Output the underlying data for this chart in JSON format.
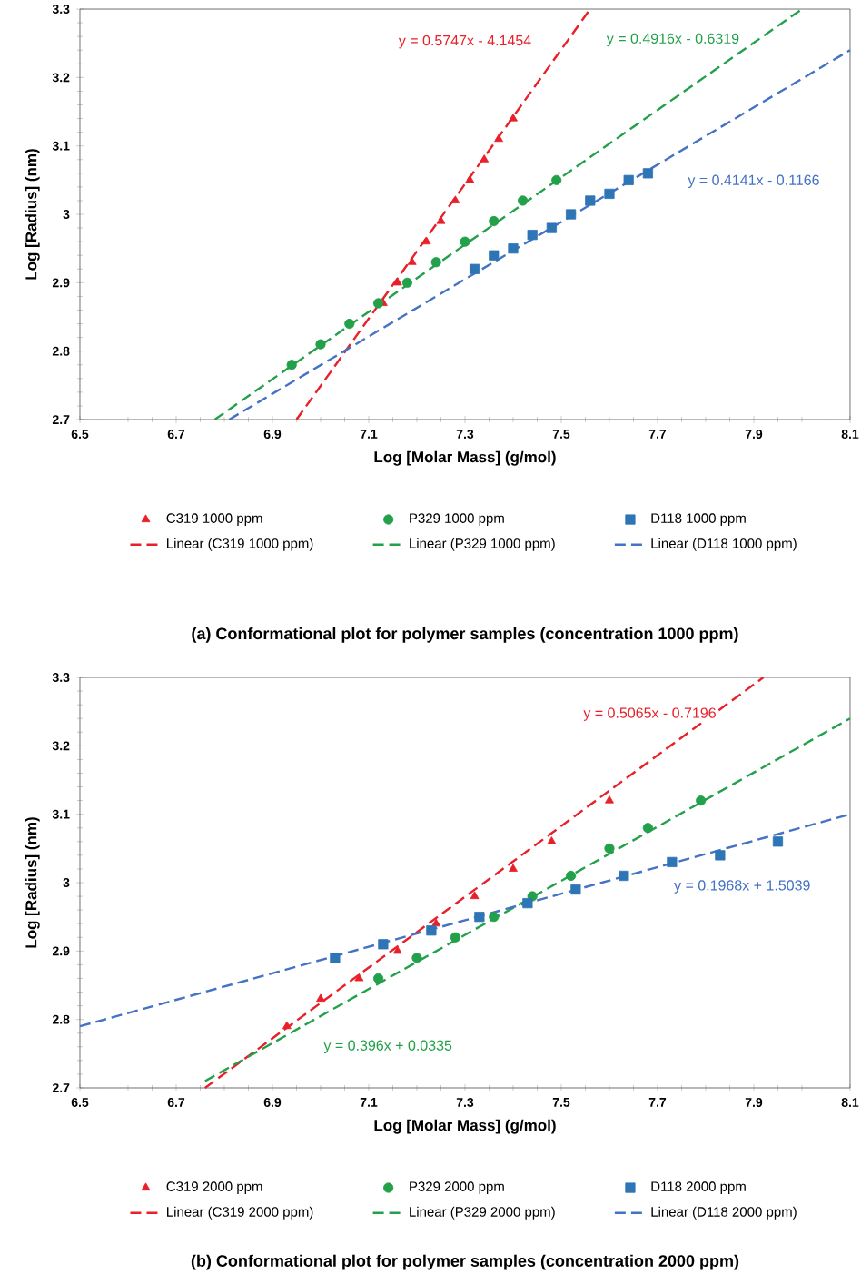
{
  "chart_data": [
    {
      "type": "scatter",
      "title": "(a)  Conformational plot for polymer samples (concentration 1000 ppm)",
      "xlabel": "Log [Molar Mass] (g/mol)",
      "ylabel": "Log [Radius] (nm)",
      "xlim": [
        6.5,
        8.1
      ],
      "ylim": [
        2.7,
        3.3
      ],
      "xticks": [
        6.5,
        6.7,
        6.9,
        7.1,
        7.3,
        7.5,
        7.7,
        7.9,
        8.1
      ],
      "yticks": [
        2.7,
        2.8,
        2.9,
        3,
        3.1,
        3.2,
        3.3
      ],
      "grid": false,
      "legend": "bottom",
      "series": [
        {
          "name": "C319 1000 ppm",
          "color": "#e8202a",
          "marker": "triangle",
          "x": [
            7.13,
            7.16,
            7.19,
            7.22,
            7.25,
            7.28,
            7.31,
            7.34,
            7.37,
            7.4
          ],
          "values": [
            2.87,
            2.9,
            2.93,
            2.96,
            2.99,
            3.02,
            3.05,
            3.08,
            3.11,
            3.14
          ]
        },
        {
          "name": "P329 1000 ppm",
          "color": "#22a04a",
          "marker": "circle",
          "x": [
            6.94,
            7.0,
            7.06,
            7.12,
            7.18,
            7.24,
            7.3,
            7.36,
            7.42,
            7.49
          ],
          "values": [
            2.78,
            2.81,
            2.84,
            2.87,
            2.9,
            2.93,
            2.96,
            2.99,
            3.02,
            3.05
          ]
        },
        {
          "name": "D118 1000 ppm",
          "color": "#2e75b6",
          "marker": "square",
          "x": [
            7.32,
            7.36,
            7.4,
            7.44,
            7.48,
            7.52,
            7.56,
            7.6,
            7.64,
            7.68
          ],
          "values": [
            2.92,
            2.94,
            2.95,
            2.97,
            2.98,
            3.0,
            3.02,
            3.03,
            3.05,
            3.06
          ]
        },
        {
          "name": "Linear (C319 1000 ppm)",
          "type": "line",
          "line_style": "dashed",
          "color": "#e8202a",
          "x": [
            6.95,
            7.56
          ],
          "values": [
            2.7,
            3.3
          ]
        },
        {
          "name": "Linear (P329 1000 ppm)",
          "type": "line",
          "line_style": "dashed",
          "color": "#22a04a",
          "x": [
            6.78,
            8.0
          ],
          "values": [
            2.7,
            3.3
          ]
        },
        {
          "name": "Linear (D118 1000 ppm)",
          "type": "line",
          "line_style": "dashed",
          "color": "#4472c4",
          "x": [
            6.81,
            8.1
          ],
          "values": [
            2.7,
            3.24
          ]
        }
      ],
      "annotations": [
        "y = 0.5747x - 4.1454",
        "y = 0.4916x - 0.6319",
        "y = 0.4141x - 0.1166"
      ]
    },
    {
      "type": "scatter",
      "title": "(b)  Conformational plot for polymer samples (concentration 2000 ppm)",
      "xlabel": "Log [Molar Mass] (g/mol)",
      "ylabel": "Log [Radius] (nm)",
      "xlim": [
        6.5,
        8.1
      ],
      "ylim": [
        2.7,
        3.3
      ],
      "xticks": [
        6.5,
        6.7,
        6.9,
        7.1,
        7.3,
        7.5,
        7.7,
        7.9,
        8.1
      ],
      "yticks": [
        2.7,
        2.8,
        2.9,
        3,
        3.1,
        3.2,
        3.3
      ],
      "grid": false,
      "legend": "bottom",
      "series": [
        {
          "name": "C319 2000 ppm",
          "color": "#e8202a",
          "marker": "triangle",
          "x": [
            6.93,
            7.0,
            7.08,
            7.16,
            7.24,
            7.32,
            7.4,
            7.48,
            7.6
          ],
          "values": [
            2.79,
            2.83,
            2.86,
            2.9,
            2.94,
            2.98,
            3.02,
            3.06,
            3.12
          ]
        },
        {
          "name": "P329 2000 ppm",
          "color": "#22a04a",
          "marker": "circle",
          "x": [
            7.12,
            7.2,
            7.28,
            7.36,
            7.44,
            7.52,
            7.6,
            7.68,
            7.79
          ],
          "values": [
            2.86,
            2.89,
            2.92,
            2.95,
            2.98,
            3.01,
            3.05,
            3.08,
            3.12
          ]
        },
        {
          "name": "D118 2000 ppm",
          "color": "#2e75b6",
          "marker": "square",
          "x": [
            7.03,
            7.13,
            7.23,
            7.33,
            7.43,
            7.53,
            7.63,
            7.73,
            7.83,
            7.95
          ],
          "values": [
            2.89,
            2.91,
            2.93,
            2.95,
            2.97,
            2.99,
            3.01,
            3.03,
            3.04,
            3.06
          ]
        },
        {
          "name": "Linear (C319 2000 ppm)",
          "type": "line",
          "line_style": "dashed",
          "color": "#e8202a",
          "x": [
            6.76,
            7.92
          ],
          "values": [
            2.7,
            3.3
          ]
        },
        {
          "name": "Linear (P329 2000 ppm)",
          "type": "line",
          "line_style": "dashed",
          "color": "#22a04a",
          "x": [
            6.76,
            8.1
          ],
          "values": [
            2.71,
            3.24
          ]
        },
        {
          "name": "Linear (D118 2000 ppm)",
          "type": "line",
          "line_style": "dashed",
          "color": "#4472c4",
          "x": [
            6.5,
            8.1
          ],
          "values": [
            2.79,
            3.1
          ]
        }
      ],
      "annotations": [
        "y = 0.5065x - 0.7196",
        "y = 0.396x + 0.0335",
        "y = 0.1968x + 1.5039"
      ]
    }
  ]
}
